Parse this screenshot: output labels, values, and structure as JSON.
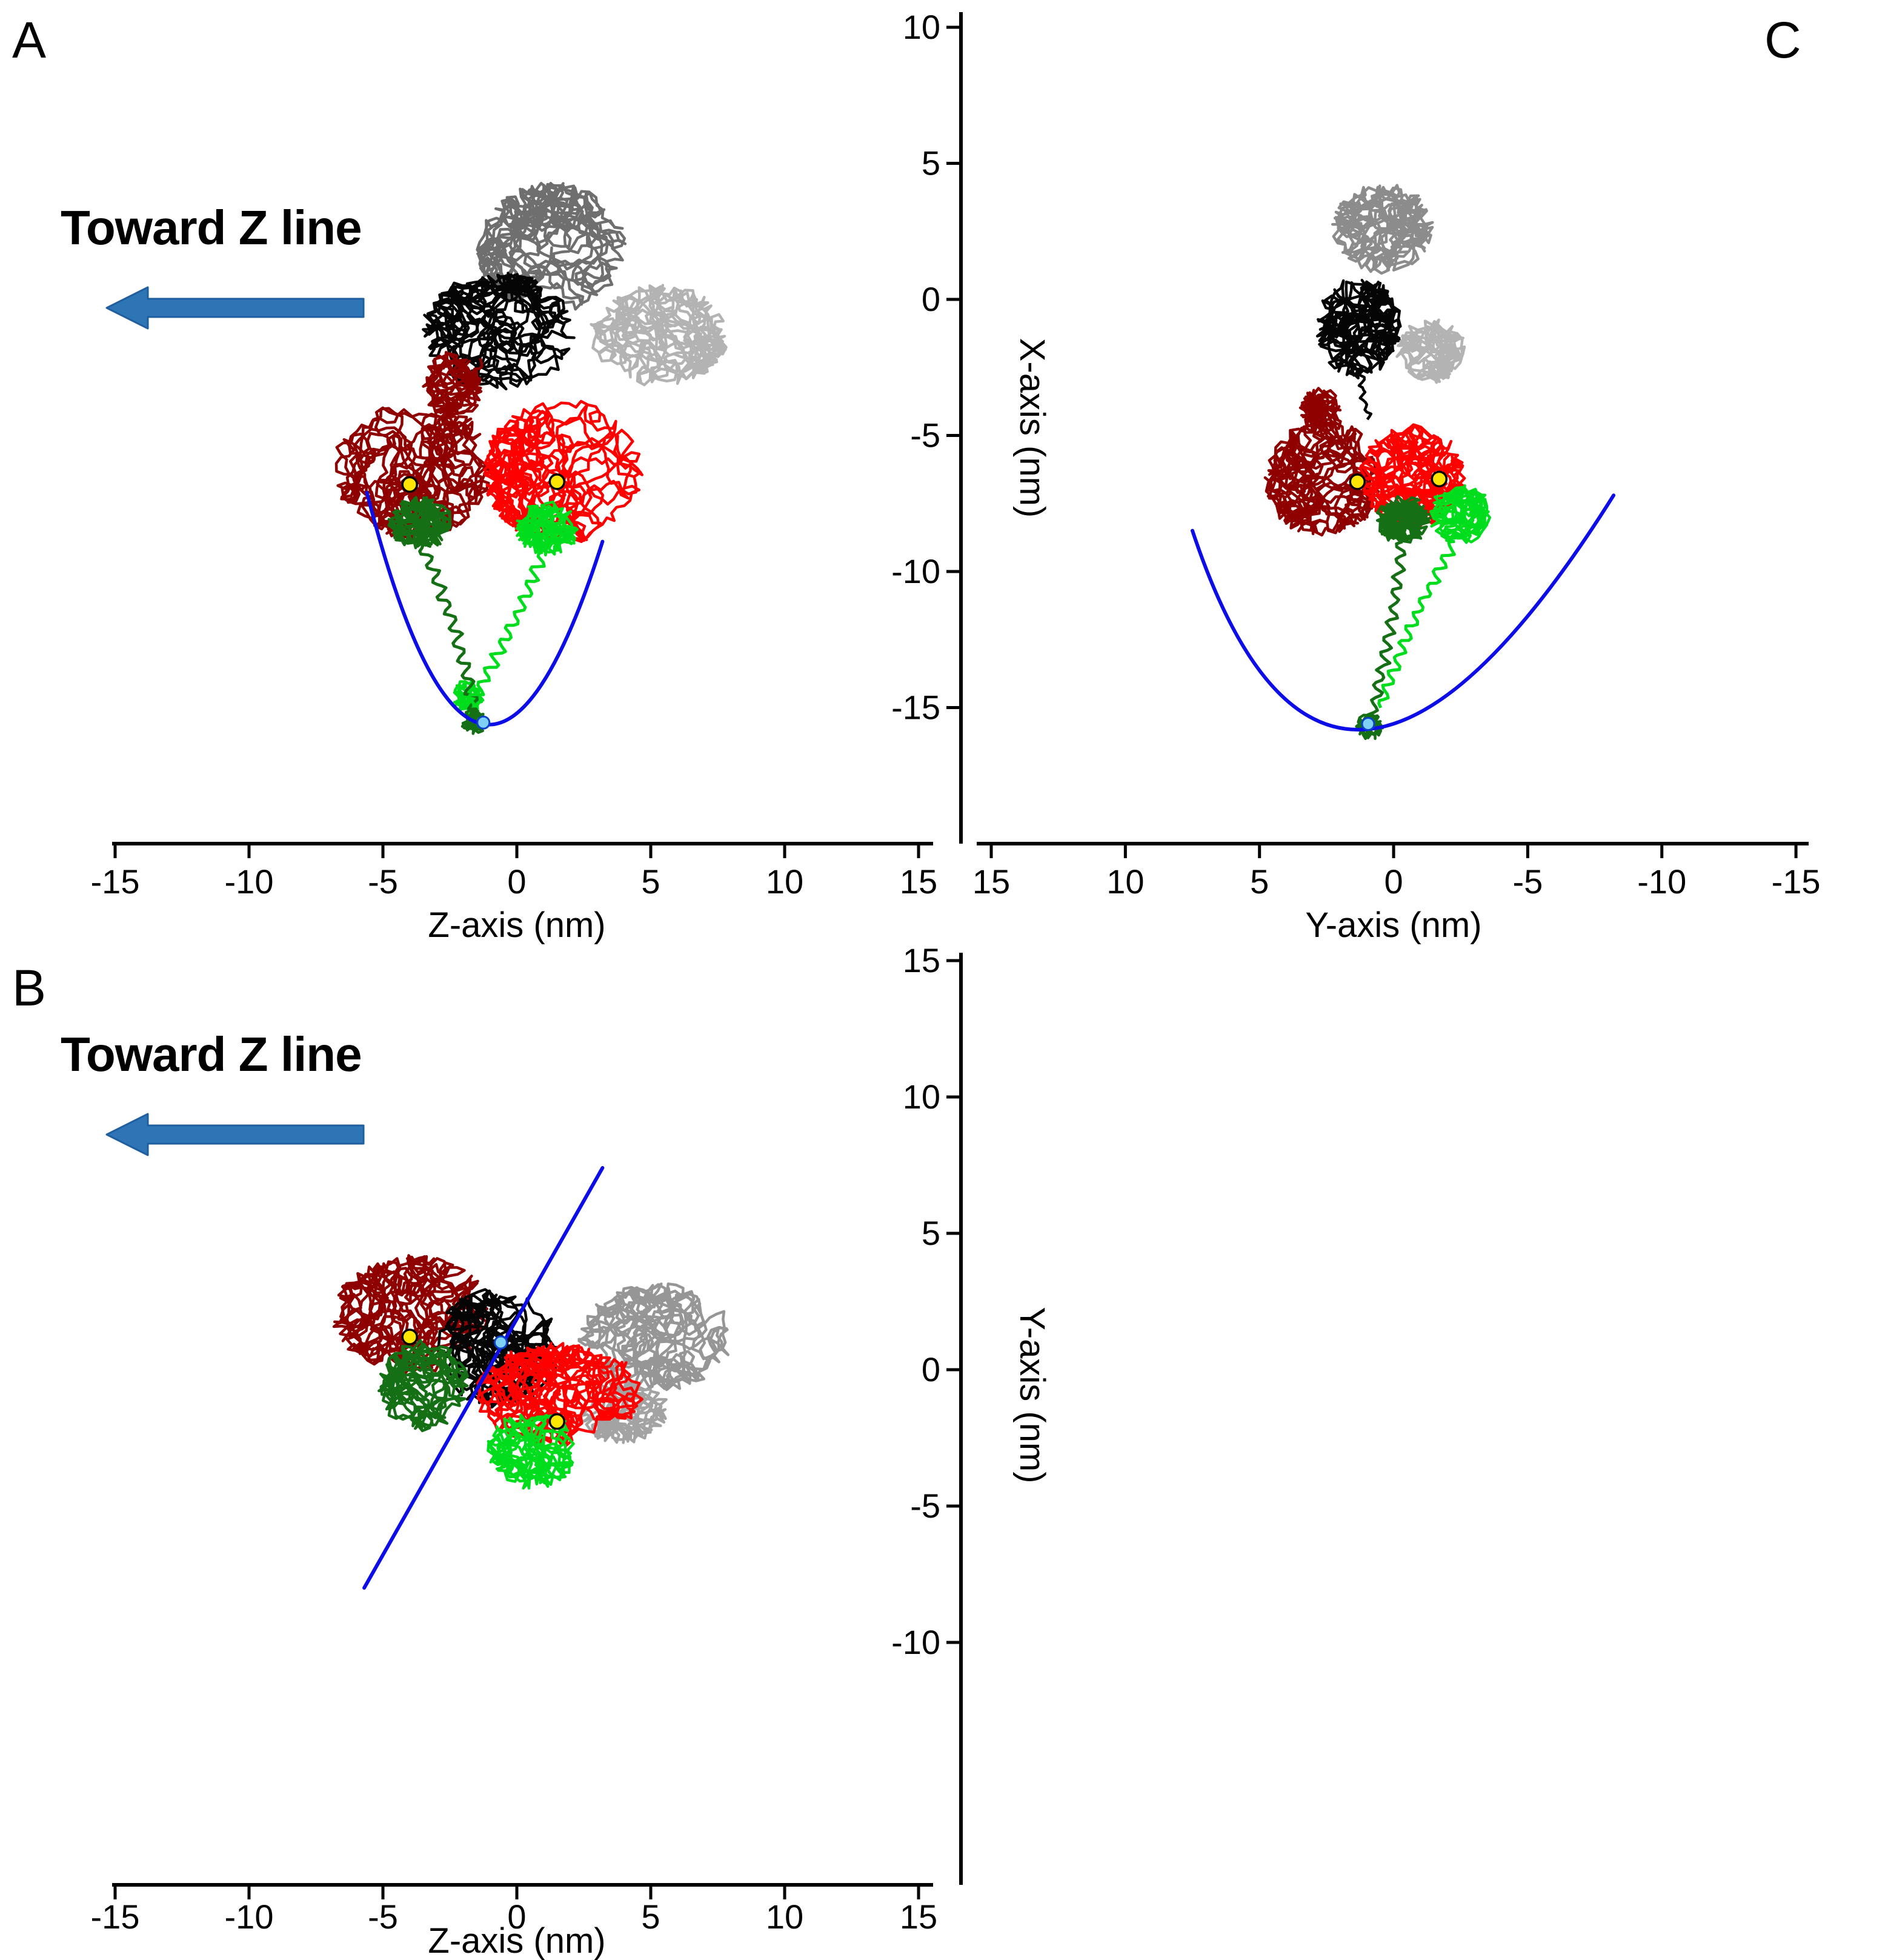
{
  "figure": {
    "panel_labels": {
      "a": "A",
      "b": "B",
      "c": "C"
    },
    "annotations": {
      "toward_z_line": "Toward Z line"
    },
    "arrow_color": "#2E75B6",
    "arrow_stroke": "#1F5FA0",
    "background": "#FFFFFF"
  },
  "chart_data": [
    {
      "id": "A",
      "type": "scatter",
      "description": "Protein backbone traces projected on Z-X plane with blue parabolic path, yellow lever markers and light-blue contact dot",
      "xlabel": "Z-axis (nm)",
      "ylabel": "X-axis (nm)",
      "xlim": [
        -15,
        15
      ],
      "ylim": [
        -20,
        10.5
      ],
      "xticks": [
        -15,
        -10,
        -5,
        0,
        5,
        10,
        15
      ],
      "yticks": [
        10,
        5,
        0,
        -5,
        -10,
        -15
      ],
      "grid": false,
      "structures": [
        {
          "name": "trace-gray",
          "color": "#6F6F6F",
          "x": 1.3,
          "y": 1.9,
          "rx": 2.8,
          "ry": 2.4,
          "n": 850,
          "seed": 101
        },
        {
          "name": "trace-lightgray",
          "color": "#B3B3B3",
          "x": 5.3,
          "y": -1.3,
          "rx": 2.6,
          "ry": 1.9,
          "n": 700,
          "seed": 102
        },
        {
          "name": "trace-black",
          "color": "#050505",
          "x": -0.7,
          "y": -1.2,
          "rx": 2.9,
          "ry": 2.2,
          "n": 800,
          "seed": 103
        },
        {
          "name": "trace-darkred",
          "color": "#8F0000",
          "x": -3.9,
          "y": -6.1,
          "rx": 3.0,
          "ry": 2.7,
          "n": 900,
          "seed": 104
        },
        {
          "name": "trace-darkred-arm",
          "color": "#8F0000",
          "x": -2.4,
          "y": -3.2,
          "rx": 1.1,
          "ry": 1.3,
          "n": 260,
          "seed": 105
        },
        {
          "name": "trace-red",
          "color": "#FE0000",
          "x": 1.7,
          "y": -6.3,
          "rx": 3.0,
          "ry": 2.7,
          "n": 900,
          "seed": 106
        },
        {
          "name": "trace-darkgreen",
          "color": "#157015",
          "x": -3.6,
          "y": -8.2,
          "rx": 1.2,
          "ry": 1.0,
          "n": 300,
          "seed": 107
        },
        {
          "name": "trace-green",
          "color": "#00DD1C",
          "x": 1.15,
          "y": -8.4,
          "rx": 1.2,
          "ry": 1.0,
          "n": 300,
          "seed": 108
        },
        {
          "name": "trace-green-end",
          "color": "#00DD1C",
          "x": -1.8,
          "y": -14.6,
          "rx": 0.55,
          "ry": 0.7,
          "n": 140,
          "seed": 109
        },
        {
          "name": "trace-darkgreen-end",
          "color": "#157015",
          "x": -1.6,
          "y": -15.5,
          "rx": 0.5,
          "ry": 0.5,
          "n": 110,
          "seed": 110
        }
      ],
      "tails": [
        {
          "name": "tail-darkred",
          "color": "#8F0000",
          "from": [
            -2.9,
            -4.8
          ],
          "to": [
            -1.3,
            -2.2
          ],
          "amp": 5,
          "wl": 24,
          "bow": 6,
          "seed": 121,
          "w": 4.5
        },
        {
          "name": "tail-darkgreen",
          "color": "#157015",
          "from": [
            -3.5,
            -9.1
          ],
          "to": [
            -1.55,
            -15.2
          ],
          "amp": 9,
          "wl": 27,
          "bow": -8,
          "seed": 122,
          "w": 5
        },
        {
          "name": "tail-green",
          "color": "#00DD1C",
          "from": [
            1.0,
            -9.3
          ],
          "to": [
            -1.75,
            -14.9
          ],
          "amp": 9,
          "wl": 26,
          "bow": -6,
          "seed": 123,
          "w": 5
        }
      ],
      "curve": {
        "shape": "parabola",
        "start": [
          -5.6,
          -7.1
        ],
        "vertex": [
          -1.3,
          -15.6
        ],
        "end": [
          3.2,
          -8.9
        ],
        "color": "#0D0DE8",
        "width": 6
      },
      "markers": [
        {
          "x": -4.0,
          "y": -6.8,
          "color": "#FFE600"
        },
        {
          "x": 1.5,
          "y": -6.7,
          "color": "#FFE600"
        }
      ],
      "contact_dot": {
        "x": -1.25,
        "y": -15.55,
        "color": "#7FD0F5"
      }
    },
    {
      "id": "B",
      "type": "scatter",
      "description": "Protein backbone traces projected on Z-Y plane with blue line path, yellow lever markers and light-blue contact dot",
      "xlabel": "Z-axis (nm)",
      "ylabel": "Y-axis (nm)",
      "xlim": [
        -15,
        15
      ],
      "ylim": [
        -19,
        15
      ],
      "xticks": [
        -15,
        -10,
        -5,
        0,
        5,
        10,
        15
      ],
      "yticks": [
        15,
        10,
        5,
        0,
        -5,
        -10
      ],
      "grid": false,
      "structures": [
        {
          "name": "trace-darkred",
          "color": "#8F0000",
          "x": -3.9,
          "y": 2.0,
          "rx": 3.0,
          "ry": 2.2,
          "n": 760,
          "seed": 301
        },
        {
          "name": "trace-black",
          "color": "#050505",
          "x": -0.7,
          "y": 0.8,
          "rx": 2.4,
          "ry": 2.2,
          "n": 700,
          "seed": 302
        },
        {
          "name": "trace-gray",
          "color": "#969696",
          "x": 5.2,
          "y": 1.2,
          "rx": 2.9,
          "ry": 2.0,
          "n": 700,
          "seed": 303
        },
        {
          "name": "trace-gray-patch",
          "color": "#A3A3A3",
          "x": 3.9,
          "y": -1.5,
          "rx": 1.8,
          "ry": 1.2,
          "n": 300,
          "seed": 304
        },
        {
          "name": "trace-darkgreen",
          "color": "#157015",
          "x": -3.5,
          "y": -0.6,
          "rx": 1.7,
          "ry": 1.7,
          "n": 420,
          "seed": 305
        },
        {
          "name": "trace-red",
          "color": "#FE0000",
          "x": 1.6,
          "y": -0.9,
          "rx": 3.2,
          "ry": 1.9,
          "n": 820,
          "seed": 306
        },
        {
          "name": "trace-green",
          "color": "#00DD1C",
          "x": 0.6,
          "y": -2.9,
          "rx": 1.7,
          "ry": 1.5,
          "n": 380,
          "seed": 307
        }
      ],
      "tails": [],
      "curve": {
        "shape": "line",
        "start": [
          -5.7,
          -8.0
        ],
        "end": [
          3.2,
          7.4
        ],
        "color": "#0D0DE8",
        "width": 6
      },
      "markers": [
        {
          "x": -4.0,
          "y": 1.2,
          "color": "#FFE600"
        },
        {
          "x": 1.5,
          "y": -1.9,
          "color": "#FFE600"
        }
      ],
      "contact_dot": {
        "x": -0.6,
        "y": 1.0,
        "color": "#7FD0F5"
      }
    },
    {
      "id": "C",
      "type": "scatter",
      "description": "Protein backbone traces projected on Y-X plane (Y axis reversed) with blue parabolic path, yellow lever markers and light-blue contact dot",
      "xlabel": "Y-axis (nm)",
      "ylabel": "X-axis (nm)",
      "xlim": [
        15,
        -15
      ],
      "ylim": [
        -20,
        10.5
      ],
      "xticks": [
        15,
        10,
        5,
        0,
        -5,
        -10,
        -15
      ],
      "yticks": [
        10,
        5,
        0,
        -5,
        -10,
        -15
      ],
      "y_axis_shared": true,
      "grid": false,
      "structures": [
        {
          "name": "trace-gray",
          "color": "#8C8C8C",
          "x": 0.4,
          "y": 2.6,
          "rx": 1.9,
          "ry": 1.7,
          "n": 520,
          "seed": 201
        },
        {
          "name": "trace-black",
          "color": "#050505",
          "x": 1.3,
          "y": -1.0,
          "rx": 1.6,
          "ry": 1.9,
          "n": 560,
          "seed": 202
        },
        {
          "name": "trace-lightgray",
          "color": "#B3B3B3",
          "x": -1.4,
          "y": -1.9,
          "rx": 1.3,
          "ry": 1.2,
          "n": 300,
          "seed": 203
        },
        {
          "name": "trace-darkred",
          "color": "#8F0000",
          "x": 2.6,
          "y": -6.6,
          "rx": 2.2,
          "ry": 2.2,
          "n": 700,
          "seed": 204
        },
        {
          "name": "trace-darkred-arm",
          "color": "#8F0000",
          "x": 2.7,
          "y": -4.2,
          "rx": 0.8,
          "ry": 1.0,
          "n": 180,
          "seed": 205
        },
        {
          "name": "trace-red",
          "color": "#FE0000",
          "x": -0.7,
          "y": -6.5,
          "rx": 2.0,
          "ry": 1.9,
          "n": 640,
          "seed": 206
        },
        {
          "name": "trace-darkgreen",
          "color": "#157015",
          "x": -0.4,
          "y": -8.1,
          "rx": 1.1,
          "ry": 0.9,
          "n": 260,
          "seed": 207
        },
        {
          "name": "trace-green",
          "color": "#00DD1C",
          "x": -2.5,
          "y": -7.9,
          "rx": 1.2,
          "ry": 1.1,
          "n": 280,
          "seed": 208
        },
        {
          "name": "trace-darkgreen-end",
          "color": "#157015",
          "x": 0.9,
          "y": -15.7,
          "rx": 0.5,
          "ry": 0.5,
          "n": 120,
          "seed": 209
        }
      ],
      "tails": [
        {
          "name": "tail-black",
          "color": "#050505",
          "from": [
            1.2,
            -2.6
          ],
          "to": [
            0.9,
            -4.4
          ],
          "amp": 4,
          "wl": 20,
          "bow": 4,
          "seed": 221,
          "w": 4.5
        },
        {
          "name": "tail-darkgreen",
          "color": "#157015",
          "from": [
            -0.3,
            -8.9
          ],
          "to": [
            0.85,
            -15.4
          ],
          "amp": 8,
          "wl": 26,
          "bow": -6,
          "seed": 222,
          "w": 5
        },
        {
          "name": "tail-green",
          "color": "#00DD1C",
          "from": [
            -2.3,
            -8.9
          ],
          "to": [
            0.5,
            -15.0
          ],
          "amp": 8,
          "wl": 26,
          "bow": 8,
          "seed": 223,
          "w": 5
        }
      ],
      "curve": {
        "shape": "parabola",
        "start": [
          7.5,
          -8.5
        ],
        "vertex": [
          1.0,
          -15.8
        ],
        "end": [
          -8.2,
          -7.2
        ],
        "color": "#0D0DE8",
        "width": 6
      },
      "markers": [
        {
          "x": 1.35,
          "y": -6.7,
          "color": "#FFE600"
        },
        {
          "x": -1.7,
          "y": -6.6,
          "color": "#FFE600"
        }
      ],
      "contact_dot": {
        "x": 0.95,
        "y": -15.6,
        "color": "#7FD0F5"
      }
    }
  ]
}
